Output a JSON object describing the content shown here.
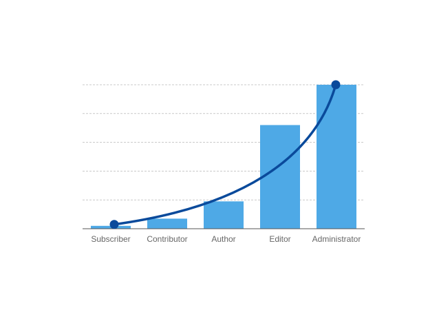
{
  "chart_data": {
    "type": "bar",
    "categories": [
      "Subscriber",
      "Contributor",
      "Author",
      "Editor",
      "Administrator"
    ],
    "values": [
      1,
      3.5,
      9.5,
      36,
      50
    ],
    "ylim": [
      0,
      50
    ],
    "grid": true,
    "gridlines": [
      10,
      20,
      30,
      40,
      50
    ],
    "trend_line": {
      "type": "curve",
      "start": {
        "category": "Subscriber",
        "value": 1.5
      },
      "end": {
        "category": "Administrator",
        "value": 50
      }
    },
    "colors": {
      "bar": "#4EA9E6",
      "trend_line": "#0A4A9B",
      "grid": "#C8C8C8",
      "axis": "#555555",
      "tick_label": "#666666"
    }
  }
}
